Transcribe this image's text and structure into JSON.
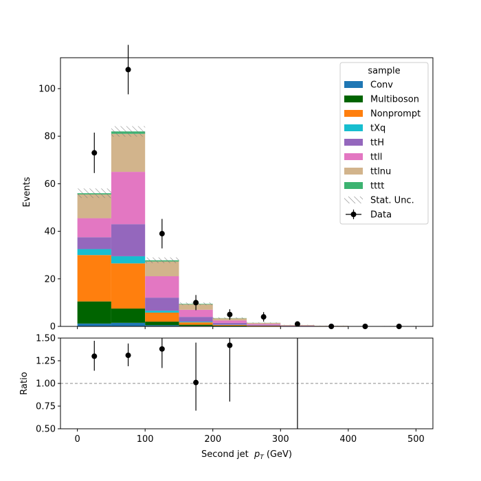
{
  "chart_data": {
    "type": "bar",
    "stacked": true,
    "x_edges": [
      0,
      50,
      100,
      150,
      200,
      250,
      300,
      350,
      400,
      450,
      500
    ],
    "xlabel": "Second jet  p_T (GeV)",
    "xlabel_parts": {
      "main": "Second jet  ",
      "var": "p",
      "sub": "T",
      "unit": " (GeV)"
    },
    "main_panel": {
      "ylabel": "Events",
      "ylim": [
        0,
        113
      ],
      "yticks": [
        0,
        20,
        40,
        60,
        80,
        100
      ],
      "legend_title": "sample",
      "legend_position": "top-right",
      "series": [
        {
          "name": "Conv",
          "color": "#1f77b4",
          "values": [
            1.2,
            1.5,
            0.5,
            0.2,
            0.1,
            0.05,
            0.02,
            0,
            0,
            0
          ]
        },
        {
          "name": "Multiboson",
          "color": "#006400",
          "values": [
            9.3,
            6.0,
            1.5,
            0.5,
            0.2,
            0.1,
            0.03,
            0.02,
            0.01,
            0
          ]
        },
        {
          "name": "Nonprompt",
          "color": "#ff7f0e",
          "values": [
            19.5,
            19.0,
            3.8,
            1.0,
            0.3,
            0.15,
            0.05,
            0.03,
            0.02,
            0.1
          ]
        },
        {
          "name": "tXq",
          "color": "#17becf",
          "values": [
            2.5,
            3.0,
            0.8,
            0.3,
            0.1,
            0.05,
            0.02,
            0.01,
            0,
            0
          ]
        },
        {
          "name": "ttH",
          "color": "#9467bd",
          "values": [
            5.0,
            13.5,
            5.5,
            2.0,
            0.8,
            0.3,
            0.1,
            0.05,
            0.02,
            0.01
          ]
        },
        {
          "name": "ttll",
          "color": "#e377c2",
          "values": [
            8.0,
            22.0,
            9.0,
            3.0,
            1.0,
            0.4,
            0.15,
            0.08,
            0.03,
            0.02
          ]
        },
        {
          "name": "ttlnu",
          "color": "#d2b48c",
          "values": [
            10.0,
            16.0,
            6.2,
            2.3,
            0.9,
            0.4,
            0.2,
            0.08,
            0.03,
            0.02
          ]
        },
        {
          "name": "tttt",
          "color": "#3cb371",
          "values": [
            0.5,
            1.0,
            0.5,
            0.2,
            0.1,
            0.05,
            0.02,
            0.01,
            0,
            0
          ]
        }
      ],
      "stat_unc": {
        "name": "Stat. Unc.",
        "values": [
          2.0,
          2.2,
          1.2,
          0.6,
          0.3,
          0.15,
          0.08,
          0.05,
          0.03,
          0.02
        ]
      },
      "data": {
        "name": "Data",
        "x": [
          25,
          75,
          125,
          175,
          225,
          275,
          325,
          375,
          425,
          475
        ],
        "y": [
          73,
          108,
          39,
          10,
          5,
          4,
          1,
          0,
          0,
          0
        ],
        "yerr": [
          8.5,
          10.4,
          6.2,
          3.2,
          2.2,
          2.0,
          1.0,
          0,
          0,
          0
        ]
      }
    },
    "ratio_panel": {
      "ylabel": "Ratio",
      "ylim": [
        0.5,
        1.5
      ],
      "yticks": [
        "0.50",
        "0.75",
        "1.00",
        "1.25",
        "1.50"
      ],
      "ytick_values": [
        0.5,
        0.75,
        1.0,
        1.25,
        1.5
      ],
      "xticks": [
        0,
        100,
        200,
        300,
        400,
        500
      ],
      "reference_line": 1.0,
      "points": [
        {
          "x": 25,
          "y": 1.3,
          "lo": 1.14,
          "hi": 1.47
        },
        {
          "x": 75,
          "y": 1.31,
          "lo": 1.19,
          "hi": 1.44
        },
        {
          "x": 125,
          "y": 1.38,
          "lo": 1.17,
          "hi": 1.6
        },
        {
          "x": 175,
          "y": 1.01,
          "lo": 0.7,
          "hi": 1.45
        },
        {
          "x": 225,
          "y": 1.42,
          "lo": 0.8,
          "hi": 1.6
        },
        {
          "x": 325,
          "y": null,
          "lo": 0.0,
          "hi": 2.0
        }
      ]
    }
  }
}
